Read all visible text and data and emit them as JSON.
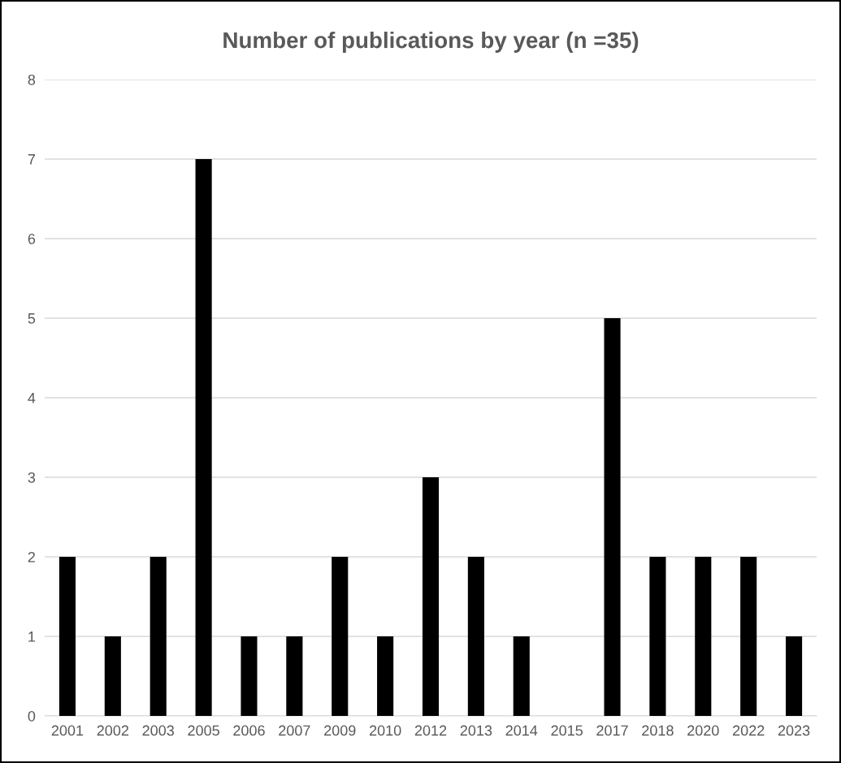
{
  "chart_data": {
    "type": "bar",
    "title": "Number of publications by year (n =35)",
    "categories": [
      "2001",
      "2002",
      "2003",
      "2005",
      "2006",
      "2007",
      "2009",
      "2010",
      "2012",
      "2013",
      "2014",
      "2015",
      "2017",
      "2018",
      "2020",
      "2022",
      "2023"
    ],
    "values": [
      2,
      1,
      2,
      7,
      1,
      1,
      2,
      1,
      3,
      2,
      1,
      0,
      5,
      2,
      2,
      2,
      1
    ],
    "color": "#000000",
    "ylim": [
      0,
      8
    ],
    "yticks": [
      0,
      1,
      2,
      3,
      4,
      5,
      6,
      7,
      8
    ],
    "grid": "y"
  }
}
